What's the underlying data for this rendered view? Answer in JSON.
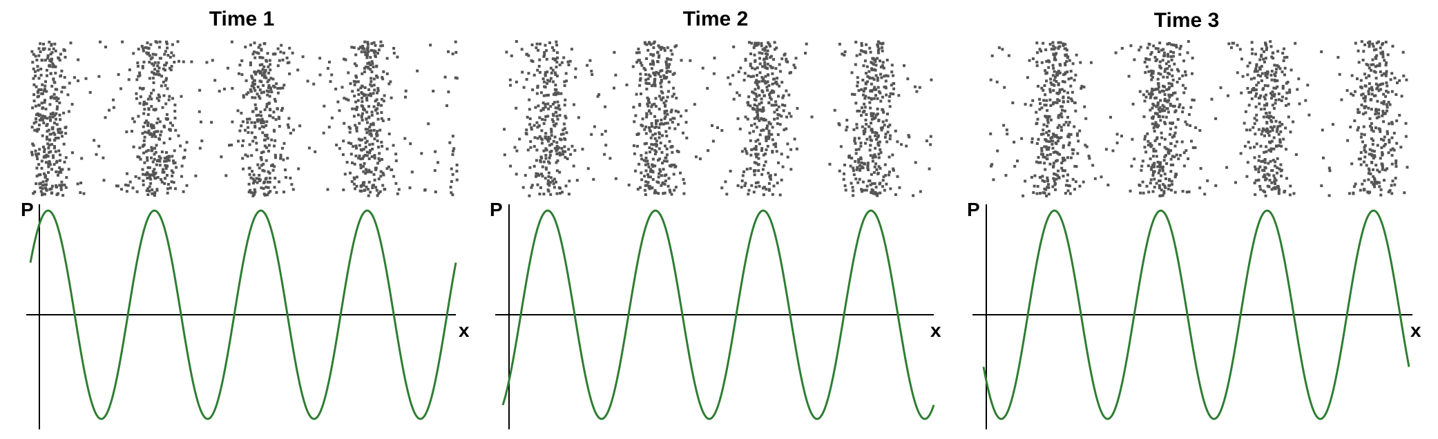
{
  "panels": [
    {
      "title": "Time 1",
      "phase_deg": 30
    },
    {
      "title": "Time 2",
      "phase_deg": -60
    },
    {
      "title": "Time 3",
      "phase_deg": -150
    }
  ],
  "axes": {
    "y_label": "P",
    "x_label": "x"
  },
  "wave": {
    "cycles": 4,
    "color": "#2e7d32"
  },
  "particles": {
    "color": "#555555",
    "per_cycle": 110
  }
}
